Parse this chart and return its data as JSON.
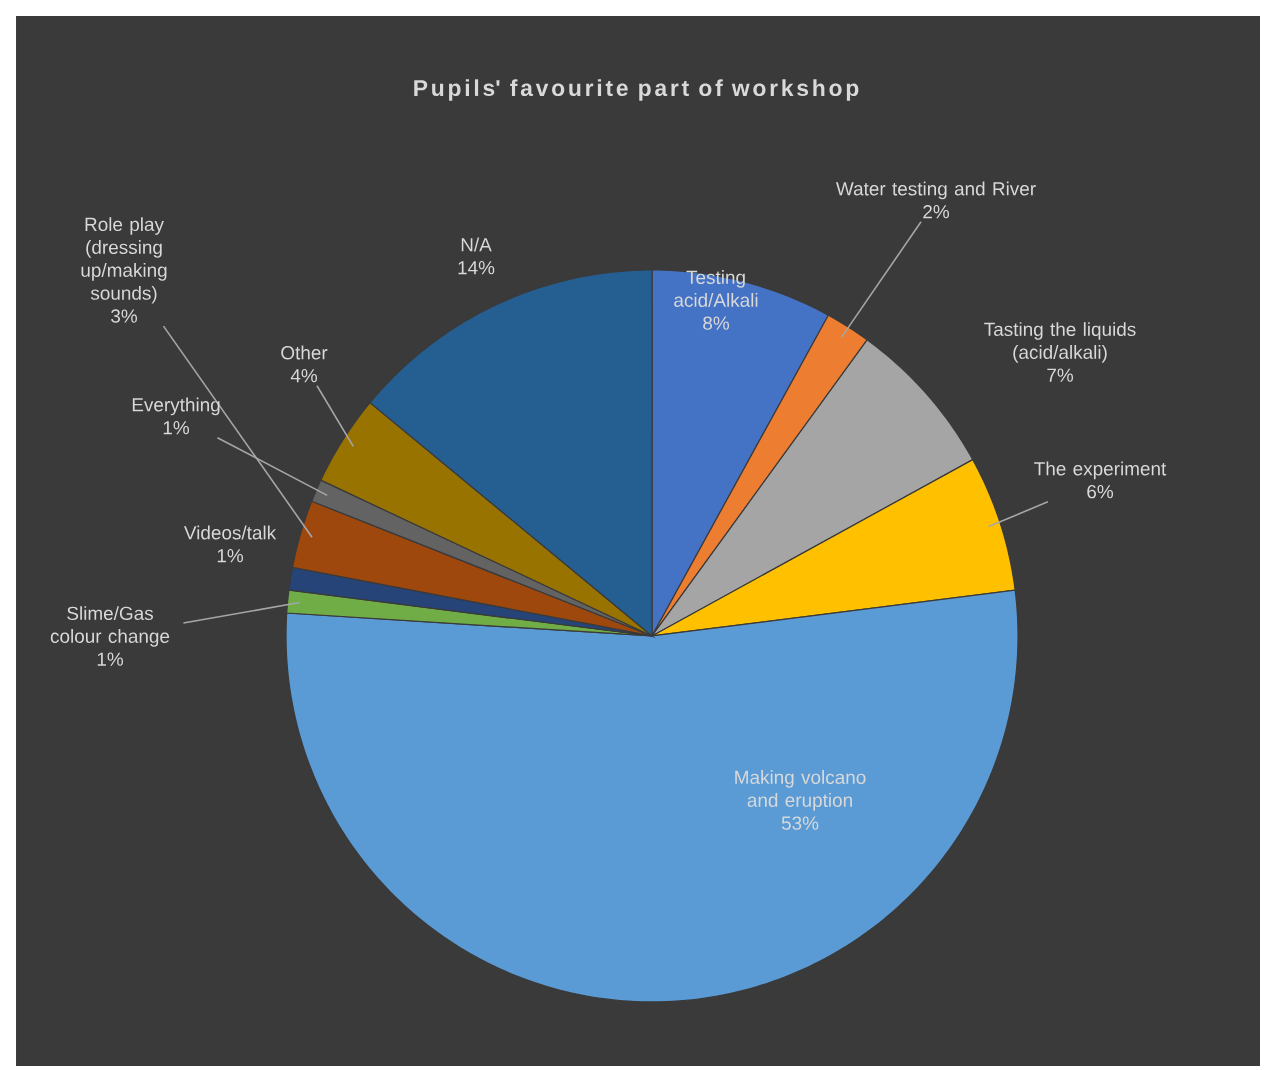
{
  "chart_data": {
    "type": "pie",
    "title": "Pupils' favourite part of workshop",
    "categories": [
      "Testing acid/Alkali",
      "Water testing and River",
      "Tasting the liquids (acid/alkali)",
      "The experiment",
      "Making volcano and eruption",
      "Slime/Gas colour change",
      "Videos/talk",
      "Role play (dressing up/making sounds)",
      "Everything",
      "Other",
      "N/A"
    ],
    "values": [
      8,
      2,
      7,
      6,
      53,
      1,
      1,
      3,
      1,
      4,
      14
    ],
    "value_labels": [
      "8%",
      "2%",
      "7%",
      "6%",
      "53%",
      "1%",
      "1%",
      "3%",
      "1%",
      "4%",
      "14%"
    ],
    "colors": [
      "#4472c4",
      "#ed7d31",
      "#a5a5a5",
      "#ffc000",
      "#5b9bd5",
      "#70ad47",
      "#264478",
      "#9e480e",
      "#636363",
      "#997300",
      "#255e91"
    ]
  }
}
